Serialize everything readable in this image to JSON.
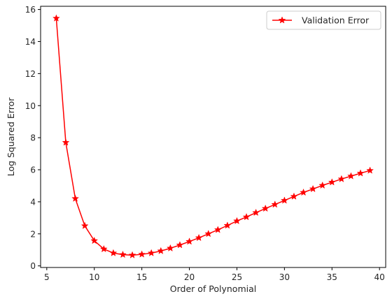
{
  "chart_data": {
    "type": "line",
    "title": "",
    "xlabel": "Order of Polynomial",
    "ylabel": "Log Squared Error",
    "xlim": [
      4.35,
      40.65
    ],
    "ylim": [
      -0.1,
      16.2
    ],
    "xticks": [
      5,
      10,
      15,
      20,
      25,
      30,
      35,
      40
    ],
    "yticks": [
      0,
      2,
      4,
      6,
      8,
      10,
      12,
      14,
      16
    ],
    "grid": false,
    "legend_position": "top-right",
    "series": [
      {
        "name": "Validation Error",
        "color": "#ff0000",
        "marker": "star",
        "x": [
          6,
          7,
          8,
          9,
          10,
          11,
          12,
          13,
          14,
          15,
          16,
          17,
          18,
          19,
          20,
          21,
          22,
          23,
          24,
          25,
          26,
          27,
          28,
          29,
          30,
          31,
          32,
          33,
          34,
          35,
          36,
          37,
          38,
          39
        ],
        "values": [
          15.45,
          7.7,
          4.2,
          2.5,
          1.57,
          1.05,
          0.8,
          0.7,
          0.67,
          0.72,
          0.8,
          0.93,
          1.1,
          1.3,
          1.52,
          1.75,
          2.0,
          2.25,
          2.52,
          2.8,
          3.05,
          3.32,
          3.58,
          3.83,
          4.08,
          4.33,
          4.58,
          4.8,
          5.02,
          5.22,
          5.42,
          5.6,
          5.78,
          5.95
        ]
      }
    ]
  }
}
